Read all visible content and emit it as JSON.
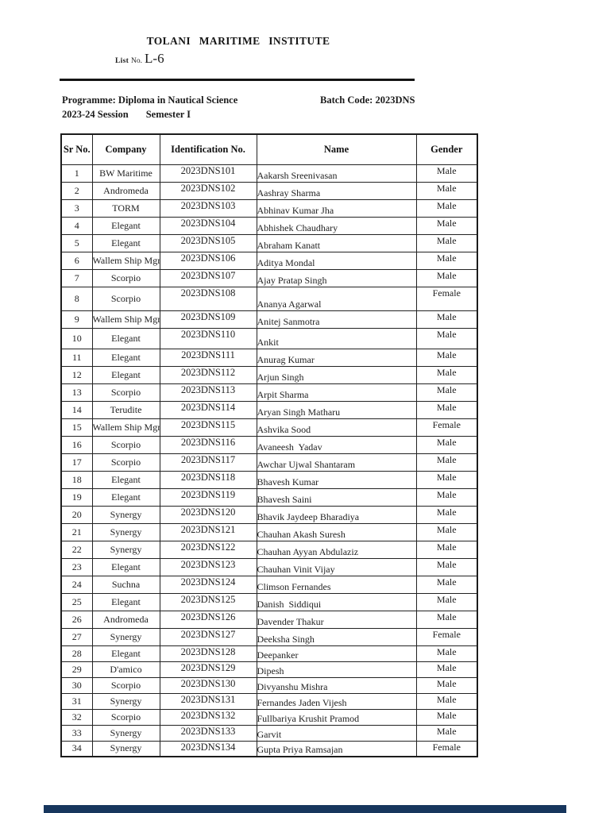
{
  "header": {
    "institute_title": "TOLANI MARITIME INSTITUTE",
    "list_label": "List",
    "list_no_label": "No.",
    "list_no_value": "L-6",
    "programme_label": "Programme: Diploma in Nautical Science",
    "batch_code_label": "Batch Code: 2023DNS",
    "session": "2023-24 Session",
    "semester": "Semester I"
  },
  "table": {
    "columns": [
      "Sr No.",
      "Company",
      "Identification No.",
      "Name",
      "Gender"
    ],
    "rows": [
      {
        "sr": "1",
        "company": "BW Maritime",
        "id": "2023DNS101",
        "name": "Aakarsh Sreenivasan",
        "gender": "Male"
      },
      {
        "sr": "2",
        "company": "Andromeda",
        "id": "2023DNS102",
        "name": "Aashray Sharma",
        "gender": "Male"
      },
      {
        "sr": "3",
        "company": "TORM",
        "id": "2023DNS103",
        "name": "Abhinav Kumar Jha",
        "gender": "Male"
      },
      {
        "sr": "4",
        "company": "Elegant",
        "id": "2023DNS104",
        "name": "Abhishek Chaudhary",
        "gender": "Male"
      },
      {
        "sr": "5",
        "company": "Elegant",
        "id": "2023DNS105",
        "name": "Abraham Kanatt",
        "gender": "Male"
      },
      {
        "sr": "6",
        "company": "Wallem Ship Mgmt",
        "id": "2023DNS106",
        "name": "Aditya Mondal",
        "gender": "Male"
      },
      {
        "sr": "7",
        "company": "Scorpio",
        "id": "2023DNS107",
        "name": "Ajay Pratap Singh",
        "gender": "Male"
      },
      {
        "sr": "8",
        "company": "Scorpio",
        "id": "2023DNS108",
        "name": "Ananya Agarwal",
        "gender": "Female"
      },
      {
        "sr": "9",
        "company": "Wallem Ship Mgmt",
        "id": "2023DNS109",
        "name": "Anitej Sanmotra",
        "gender": "Male"
      },
      {
        "sr": "10",
        "company": "Elegant",
        "id": "2023DNS110",
        "name": "Ankit",
        "gender": "Male"
      },
      {
        "sr": "11",
        "company": "Elegant",
        "id": "2023DNS111",
        "name": "Anurag Kumar",
        "gender": "Male"
      },
      {
        "sr": "12",
        "company": "Elegant",
        "id": "2023DNS112",
        "name": "Arjun Singh",
        "gender": "Male"
      },
      {
        "sr": "13",
        "company": "Scorpio",
        "id": "2023DNS113",
        "name": "Arpit Sharma",
        "gender": "Male"
      },
      {
        "sr": "14",
        "company": "Terudite",
        "id": "2023DNS114",
        "name": "Aryan Singh Matharu",
        "gender": "Male"
      },
      {
        "sr": "15",
        "company": "Wallem Ship Mgmt",
        "id": "2023DNS115",
        "name": "Ashvika Sood",
        "gender": "Female"
      },
      {
        "sr": "16",
        "company": "Scorpio",
        "id": "2023DNS116",
        "name": "Avaneesh  Yadav",
        "gender": "Male"
      },
      {
        "sr": "17",
        "company": "Scorpio",
        "id": "2023DNS117",
        "name": "Awchar Ujwal Shantaram",
        "gender": "Male"
      },
      {
        "sr": "18",
        "company": "Elegant",
        "id": "2023DNS118",
        "name": "Bhavesh Kumar",
        "gender": "Male"
      },
      {
        "sr": "19",
        "company": "Elegant",
        "id": "2023DNS119",
        "name": "Bhavesh Saini",
        "gender": "Male"
      },
      {
        "sr": "20",
        "company": "Synergy",
        "id": "2023DNS120",
        "name": "Bhavik Jaydeep Bharadiya",
        "gender": "Male"
      },
      {
        "sr": "21",
        "company": "Synergy",
        "id": "2023DNS121",
        "name": "Chauhan Akash Suresh",
        "gender": "Male"
      },
      {
        "sr": "22",
        "company": "Synergy",
        "id": "2023DNS122",
        "name": "Chauhan Ayyan Abdulaziz",
        "gender": "Male"
      },
      {
        "sr": "23",
        "company": "Elegant",
        "id": "2023DNS123",
        "name": "Chauhan Vinit Vijay",
        "gender": "Male"
      },
      {
        "sr": "24",
        "company": "Suchna",
        "id": "2023DNS124",
        "name": "Climson Fernandes",
        "gender": "Male"
      },
      {
        "sr": "25",
        "company": "Elegant",
        "id": "2023DNS125",
        "name": "Danish  Siddiqui",
        "gender": "Male"
      },
      {
        "sr": "26",
        "company": "Andromeda",
        "id": "2023DNS126",
        "name": "Davender Thakur",
        "gender": "Male"
      },
      {
        "sr": "27",
        "company": "Synergy",
        "id": "2023DNS127",
        "name": "Deeksha Singh",
        "gender": "Female"
      },
      {
        "sr": "28",
        "company": "Elegant",
        "id": "2023DNS128",
        "name": "Deepanker",
        "gender": "Male"
      },
      {
        "sr": "29",
        "company": "D'amico",
        "id": "2023DNS129",
        "name": "Dipesh",
        "gender": "Male"
      },
      {
        "sr": "30",
        "company": "Scorpio",
        "id": "2023DNS130",
        "name": "Divyanshu Mishra",
        "gender": "Male"
      },
      {
        "sr": "31",
        "company": "Synergy",
        "id": "2023DNS131",
        "name": "Fernandes Jaden Vijesh",
        "gender": "Male"
      },
      {
        "sr": "32",
        "company": "Scorpio",
        "id": "2023DNS132",
        "name": "Fullbariya Krushit Pramod",
        "gender": "Male"
      },
      {
        "sr": "33",
        "company": "Synergy",
        "id": "2023DNS133",
        "name": "Garvit",
        "gender": "Male"
      },
      {
        "sr": "34",
        "company": "Synergy",
        "id": "2023DNS134",
        "name": "Gupta Priya Ramsajan",
        "gender": "Female"
      }
    ]
  }
}
